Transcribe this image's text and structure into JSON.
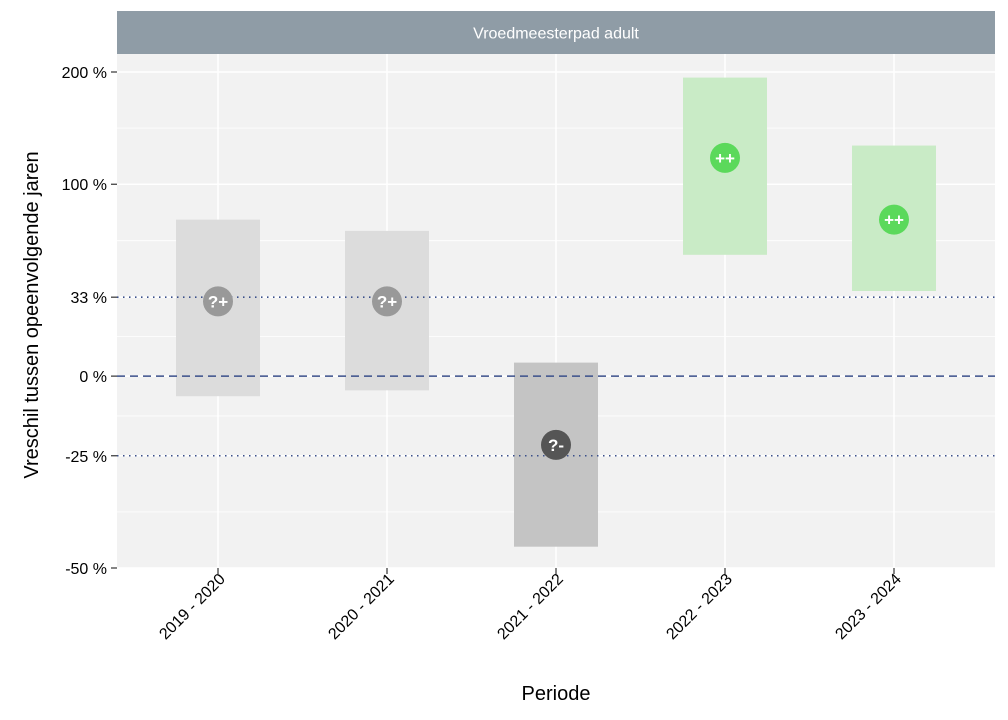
{
  "chart_data": {
    "type": "interval",
    "panel_title": "Vroedmeesterpad adult",
    "xlabel": "Periode",
    "ylabel": "Vreschil tussen opeenvolgende jaren",
    "y_scale": "log-ratio",
    "y_ticks": [
      {
        "value": 200,
        "label": "200 %"
      },
      {
        "value": 100,
        "label": "100 %"
      },
      {
        "value": 33,
        "label": "33 %"
      },
      {
        "value": 0,
        "label": "0 %"
      },
      {
        "value": -25,
        "label": "-25 %"
      },
      {
        "value": -50,
        "label": "-50 %"
      }
    ],
    "reference_lines": [
      {
        "value": 0,
        "style": "dashed",
        "color": "#3a4f8a"
      },
      {
        "value": 33,
        "style": "dotted",
        "color": "#3a4f8a"
      },
      {
        "value": -25,
        "style": "dotted",
        "color": "#3a4f8a"
      }
    ],
    "categories": [
      "2019 - 2020",
      "2020 - 2021",
      "2021 - 2022",
      "2022 - 2023",
      "2023 - 2024"
    ],
    "series": [
      {
        "category": "2019 - 2020",
        "estimate": 31,
        "lower": -7,
        "upper": 76,
        "class": "?+",
        "color": "#999999",
        "band_color": "#dcdcdc"
      },
      {
        "category": "2020 - 2021",
        "estimate": 31,
        "lower": -5,
        "upper": 69,
        "class": "?+",
        "color": "#999999",
        "band_color": "#dcdcdc"
      },
      {
        "category": "2021 - 2022",
        "estimate": -22,
        "lower": -46,
        "upper": 5,
        "class": "?-",
        "color": "#555555",
        "band_color": "#c4c4c4"
      },
      {
        "category": "2022 - 2023",
        "estimate": 120,
        "lower": 55,
        "upper": 194,
        "class": "++",
        "color": "#5bd95b",
        "band_color": "#c9ebc6"
      },
      {
        "category": "2023 - 2024",
        "estimate": 76,
        "lower": 36,
        "upper": 130,
        "class": "++",
        "color": "#5bd95b",
        "band_color": "#c9ebc6"
      }
    ],
    "colors": {
      "panel_background": "#f2f2f2",
      "strip_background": "#8f9ca6",
      "grid": "#ffffff"
    }
  }
}
